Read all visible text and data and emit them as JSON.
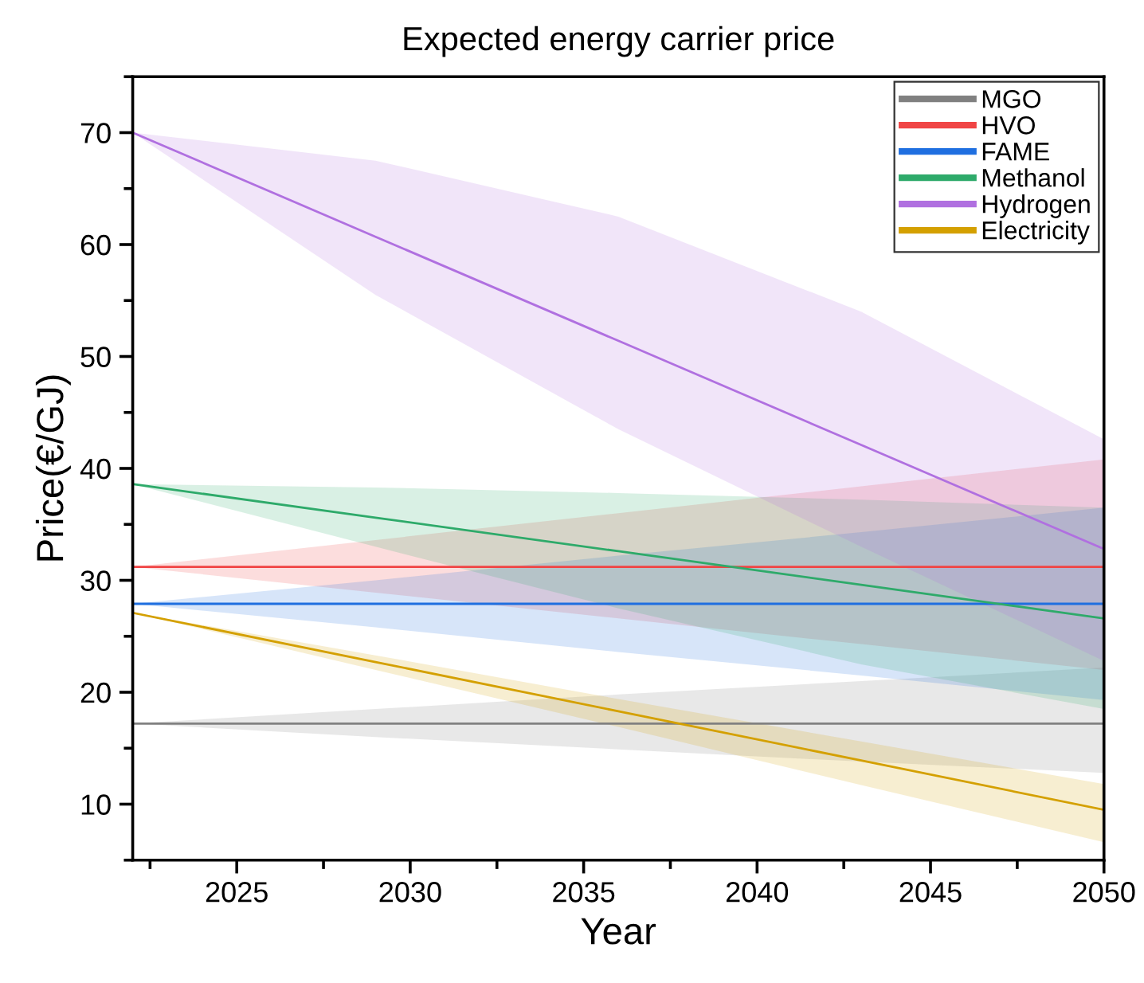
{
  "chart_data": {
    "type": "line",
    "title": "Expected energy carrier price",
    "xlabel": "Year",
    "ylabel": "Price(€/GJ)",
    "xlim": [
      2022,
      2050
    ],
    "xticks": [
      2025,
      2030,
      2035,
      2040,
      2045,
      2050
    ],
    "ylim": [
      5,
      75
    ],
    "yticks": [
      10,
      20,
      30,
      40,
      50,
      60,
      70
    ],
    "grid": false,
    "legend": "top right",
    "marker": "none",
    "line_style": "solid",
    "x": [
      2022,
      2029,
      2036,
      2043,
      2050
    ],
    "series": [
      {
        "name": "MGO",
        "color": "#808080",
        "values": [
          17.2,
          17.2,
          17.2,
          17.2,
          17.2
        ],
        "lower": [
          17.2,
          16.0,
          14.9,
          13.8,
          12.8
        ],
        "upper": [
          17.2,
          18.5,
          19.8,
          21.0,
          22.2
        ]
      },
      {
        "name": "HVO",
        "color": "#f04545",
        "values": [
          31.2,
          31.2,
          31.2,
          31.2,
          31.2
        ],
        "lower": [
          31.2,
          28.9,
          26.6,
          24.3,
          22.0
        ],
        "upper": [
          31.2,
          33.6,
          36.0,
          38.4,
          40.8
        ]
      },
      {
        "name": "FAME",
        "color": "#1f6fe0",
        "values": [
          27.9,
          27.9,
          27.9,
          27.9,
          27.9
        ],
        "lower": [
          27.9,
          25.8,
          23.6,
          21.5,
          19.3
        ],
        "upper": [
          27.9,
          30.0,
          32.2,
          34.3,
          36.5
        ]
      },
      {
        "name": "Methanol",
        "color": "#2eaa6a",
        "values": [
          38.6,
          35.6,
          32.6,
          29.6,
          26.6
        ],
        "lower": [
          38.6,
          33.0,
          27.5,
          22.5,
          18.5
        ],
        "upper": [
          38.6,
          38.3,
          37.8,
          37.2,
          36.5
        ]
      },
      {
        "name": "Hydrogen",
        "color": "#b070e0",
        "values": [
          70.0,
          60.7,
          51.4,
          42.1,
          32.8
        ],
        "lower": [
          70.0,
          55.5,
          43.5,
          33.0,
          22.8
        ],
        "upper": [
          70.0,
          67.5,
          62.5,
          54.0,
          42.6
        ]
      },
      {
        "name": "Electricity",
        "color": "#d4a000",
        "values": [
          27.1,
          22.7,
          18.3,
          13.9,
          9.5
        ],
        "lower": [
          27.1,
          22.0,
          16.9,
          11.7,
          6.6
        ],
        "upper": [
          27.1,
          23.3,
          19.4,
          15.6,
          11.8
        ]
      }
    ]
  }
}
